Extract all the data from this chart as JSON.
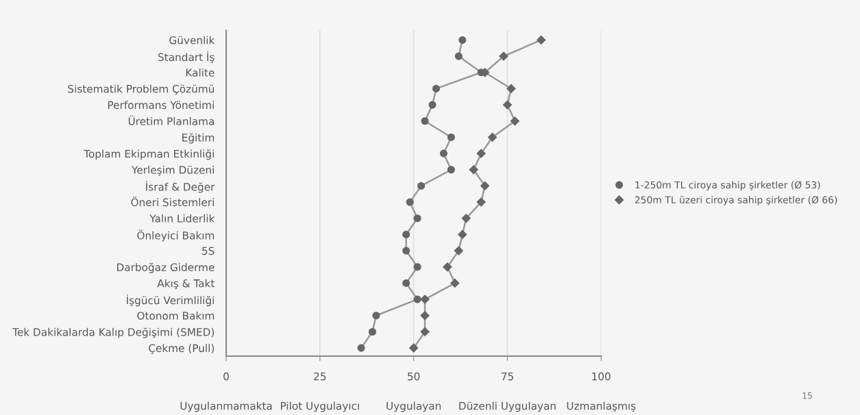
{
  "chart_data": {
    "type": "line",
    "orientation": "horizontal",
    "categories": [
      "Güvenlik",
      "Standart İş",
      "Kalite",
      "Sistematik Problem Çözümü",
      "Performans Yönetimi",
      "Üretim Planlama",
      "Eğitim",
      "Toplam Ekipman Etkinliği",
      "Yerleşim Düzeni",
      "İsraf & Değer",
      "Öneri Sistemleri",
      "Yalın Liderlik",
      "Önleyici Bakım",
      "5S",
      "Darboğaz Giderme",
      "Akış & Takt",
      "İşgücü Verimliliği",
      "Otonom Bakım",
      "Tek Dakikalarda Kalıp Değişimi (SMED)",
      "Çekme (Pull)"
    ],
    "series": [
      {
        "name": "1-250m TL ciroya sahip şirketler (Ø 53)",
        "color": "#666666",
        "marker": "circle",
        "values": [
          63,
          62,
          68,
          56,
          55,
          53,
          60,
          58,
          60,
          52,
          49,
          51,
          48,
          48,
          51,
          48,
          51,
          40,
          39,
          36
        ]
      },
      {
        "name": "250m TL üzeri ciroya sahip şirketler (Ø 66)",
        "color": "#666666",
        "marker": "diamond",
        "values": [
          84,
          74,
          69,
          76,
          75,
          77,
          71,
          68,
          66,
          69,
          68,
          64,
          63,
          62,
          59,
          61,
          53,
          53,
          53,
          50
        ]
      }
    ],
    "xlim": [
      0,
      100
    ],
    "xticks": [
      0,
      25,
      50,
      75,
      100
    ],
    "grid": "x",
    "legend": "right",
    "line_style": "solid",
    "annotations": [
      "Uygulanmamakta",
      "Pilot Uygulayıcı",
      "Uygulayan",
      "Düzenli Uygulayan",
      "Uzmanlaşmış",
      "15"
    ]
  }
}
